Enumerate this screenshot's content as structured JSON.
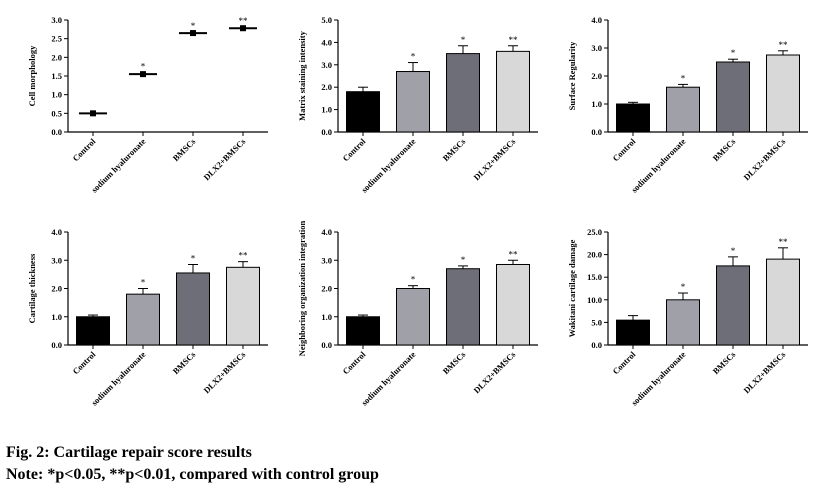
{
  "caption": {
    "title": "Fig. 2: Cartilage repair score results",
    "note": "Note: *p<0.05, **p<0.01, compared with control group"
  },
  "chart_data": [
    {
      "type": "line",
      "ylabel": "Cell morphology",
      "categories": [
        "Control",
        "sodium hyaluronate",
        "BMSCs",
        "DLX2+BMSCs"
      ],
      "values": [
        0.5,
        1.55,
        2.65,
        2.78
      ],
      "errors": [
        0.02,
        0.05,
        0.03,
        0.03
      ],
      "significance": [
        "",
        "*",
        "*",
        "**"
      ],
      "ylim": [
        0,
        3
      ],
      "yticks": [
        "0.0",
        "0.5",
        "1.0",
        "1.5",
        "2.0",
        "2.5",
        "3.0"
      ]
    },
    {
      "type": "bar",
      "ylabel": "Matrix staining intensity",
      "categories": [
        "Control",
        "sodium hyaluronate",
        "BMSCs",
        "DLX2+BMSCs"
      ],
      "values": [
        1.8,
        2.7,
        3.5,
        3.6
      ],
      "errors": [
        0.2,
        0.4,
        0.35,
        0.25
      ],
      "significance": [
        "",
        "*",
        "*",
        "**"
      ],
      "ylim": [
        0,
        5
      ],
      "yticks": [
        "0.0",
        "1.0",
        "2.0",
        "3.0",
        "4.0",
        "5.0"
      ],
      "bar_colors": [
        "#000000",
        "#a0a0a8",
        "#6e6e78",
        "#d8d8d8"
      ]
    },
    {
      "type": "bar",
      "ylabel": "Surface Regularity",
      "categories": [
        "Control",
        "sodium hyaluronate",
        "BMSCs",
        "DLX2+BMSCs"
      ],
      "values": [
        1.0,
        1.6,
        2.5,
        2.75
      ],
      "errors": [
        0.06,
        0.1,
        0.1,
        0.15
      ],
      "significance": [
        "",
        "*",
        "*",
        "**"
      ],
      "ylim": [
        0,
        4
      ],
      "yticks": [
        "0.0",
        "1.0",
        "2.0",
        "3.0",
        "4.0"
      ],
      "bar_colors": [
        "#000000",
        "#a0a0a8",
        "#6e6e78",
        "#d8d8d8"
      ]
    },
    {
      "type": "bar",
      "ylabel": "Cartilage thickness",
      "categories": [
        "Control",
        "sodium hyaluronate",
        "BMSCs",
        "DLX2+BMSCs"
      ],
      "values": [
        1.0,
        1.8,
        2.55,
        2.75
      ],
      "errors": [
        0.06,
        0.2,
        0.3,
        0.2
      ],
      "significance": [
        "",
        "*",
        "*",
        "**"
      ],
      "ylim": [
        0,
        4
      ],
      "yticks": [
        "0.0",
        "1.0",
        "2.0",
        "3.0",
        "4.0"
      ],
      "bar_colors": [
        "#000000",
        "#a0a0a8",
        "#6e6e78",
        "#d8d8d8"
      ]
    },
    {
      "type": "bar",
      "ylabel": "Neighboring organization integration",
      "categories": [
        "Control",
        "sodium hyaluronate",
        "BMSCs",
        "DLX2+BMSCs"
      ],
      "values": [
        1.0,
        2.0,
        2.7,
        2.85
      ],
      "errors": [
        0.06,
        0.1,
        0.1,
        0.15
      ],
      "significance": [
        "",
        "*",
        "*",
        "**"
      ],
      "ylim": [
        0,
        4
      ],
      "yticks": [
        "0.0",
        "1.0",
        "2.0",
        "3.0",
        "4.0"
      ],
      "bar_colors": [
        "#000000",
        "#a0a0a8",
        "#6e6e78",
        "#d8d8d8"
      ]
    },
    {
      "type": "bar",
      "ylabel": "Wakitani cartilage damage",
      "categories": [
        "Control",
        "sodium hyaluronate",
        "BMSCs",
        "DLX2+BMSCs"
      ],
      "values": [
        5.5,
        10.0,
        17.5,
        19.0
      ],
      "errors": [
        1.0,
        1.5,
        2.0,
        2.5
      ],
      "significance": [
        "",
        "*",
        "*",
        "**"
      ],
      "ylim": [
        0,
        25
      ],
      "yticks": [
        "0.0",
        "5.0",
        "10.0",
        "15.0",
        "20.0",
        "25.0"
      ],
      "bar_colors": [
        "#000000",
        "#a0a0a8",
        "#6e6e78",
        "#d8d8d8"
      ]
    }
  ]
}
